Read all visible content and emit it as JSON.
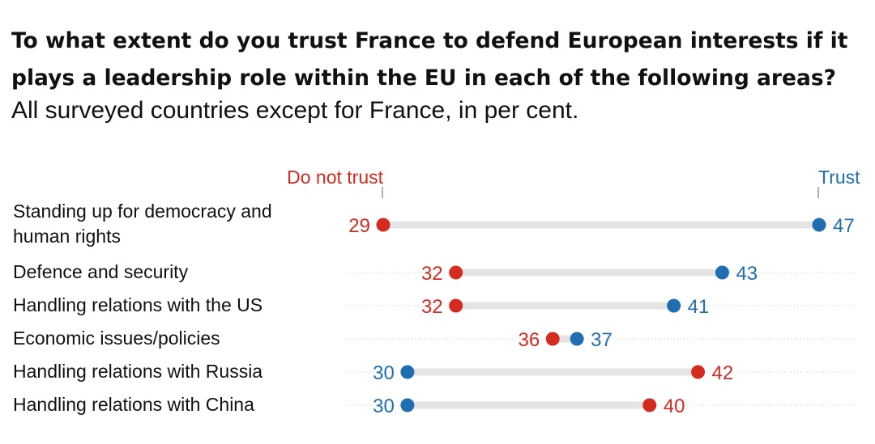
{
  "title": "To what extent do you trust France to defend European interests if it plays a leadership role within the EU in each of the following areas?",
  "subtitle": "All surveyed countries except for France, in per cent.",
  "chart_data": {
    "type": "dumbbell",
    "legend": {
      "do_not_trust": "Do not trust",
      "trust": "Trust"
    },
    "colors": {
      "do_not_trust": "#d42b20",
      "trust": "#1f6eb0",
      "bar": "#e4e4e4",
      "dots": "#c8c8c8"
    },
    "categories": [
      "Standing up for democracy and human rights",
      "Defence and security",
      "Handling relations with the US",
      "Economic issues/policies",
      "Handling relations with Russia",
      "Handling relations with China"
    ],
    "series": [
      {
        "name": "Do not trust",
        "values": [
          29,
          32,
          32,
          36,
          42,
          40
        ]
      },
      {
        "name": "Trust",
        "values": [
          47,
          43,
          41,
          37,
          30,
          30
        ]
      }
    ],
    "xlim": [
      29,
      47
    ]
  }
}
